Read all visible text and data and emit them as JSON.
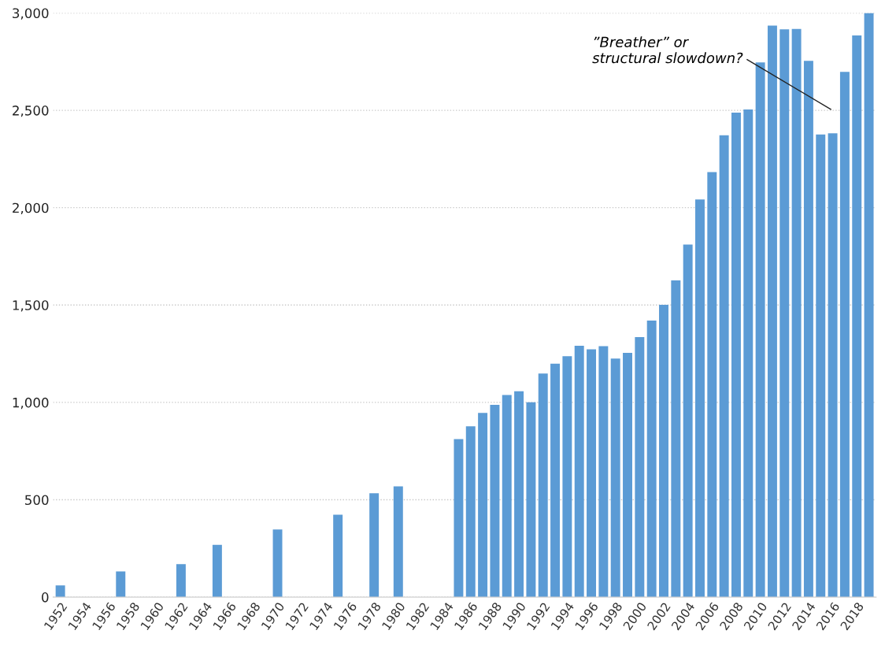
{
  "chart_data": {
    "type": "bar",
    "categories": [
      "1952",
      null,
      "1954",
      null,
      "1956",
      null,
      "1958",
      null,
      "1960",
      null,
      "1962",
      null,
      "1964",
      null,
      "1966",
      null,
      "1968",
      null,
      "1970",
      null,
      "1972",
      null,
      "1974",
      null,
      "1976",
      null,
      "1978",
      null,
      "1980",
      null,
      "1982",
      null,
      "1984",
      null,
      "1986",
      null,
      "1988",
      null,
      "1990",
      null,
      "1992",
      null,
      "1994",
      null,
      "1996",
      null,
      "1998",
      null,
      "2000",
      null,
      "2002",
      null,
      "2004",
      null,
      "2006",
      null,
      "2008",
      null,
      "2010",
      null,
      "2012",
      null,
      "2014",
      null,
      "2016",
      null,
      "2018",
      null
    ],
    "values": [
      60,
      null,
      null,
      null,
      null,
      132,
      null,
      null,
      null,
      null,
      169,
      null,
      null,
      268,
      null,
      null,
      null,
      null,
      347,
      null,
      null,
      null,
      null,
      423,
      null,
      null,
      533,
      null,
      569,
      null,
      null,
      null,
      null,
      811,
      877,
      946,
      987,
      1038,
      1057,
      1001,
      1148,
      1199,
      1237,
      1291,
      1273,
      1289,
      1225,
      1254,
      1335,
      1420,
      1501,
      1627,
      1811,
      2042,
      2183,
      2372,
      2488,
      2504,
      2746,
      2935,
      2916,
      2918,
      2754,
      2376,
      2382,
      2698,
      2885,
      3000
    ],
    "color": "#5b9bd5",
    "ylim": [
      0,
      3000
    ],
    "yticks": [
      0,
      500,
      {
        "value": 1000,
        "label": "1,000"
      },
      {
        "value": 1500,
        "label": "1,500"
      },
      {
        "value": 2000,
        "label": "2,000"
      },
      {
        "value": 2500,
        "label": "2,500"
      },
      {
        "value": 3000,
        "label": "3,000"
      }
    ],
    "grid": "y",
    "annotations": [
      "”Breather” or\nstructural slowdown?"
    ]
  }
}
